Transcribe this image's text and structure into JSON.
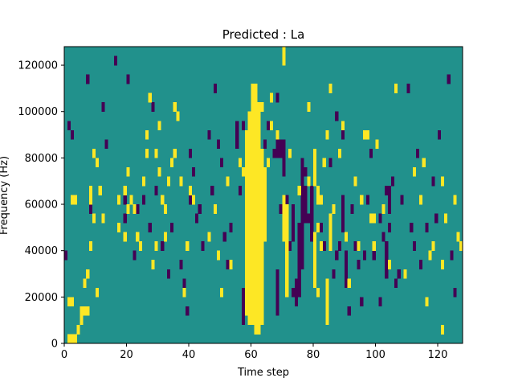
{
  "chart_data": {
    "type": "heatmap",
    "title": "Predicted : La",
    "xlabel": "Time step",
    "ylabel": "Frequency (Hz)",
    "xlim": [
      0,
      128
    ],
    "ylim": [
      0,
      128000
    ],
    "x_ticks": [
      0,
      20,
      40,
      60,
      80,
      100,
      120
    ],
    "y_ticks": [
      0,
      20000,
      40000,
      60000,
      80000,
      100000,
      120000
    ],
    "grid": false,
    "legend": "none",
    "colors": {
      "low": "#440154",
      "mid": "#21918c",
      "high": "#fde725"
    },
    "cell_width_steps": 1,
    "cell_height_hz": 4000,
    "cells": {
      "high": [
        [
          1,
          0
        ],
        [
          1,
          4
        ],
        [
          2,
          0
        ],
        [
          2,
          4
        ],
        [
          3,
          0
        ],
        [
          2,
          15
        ],
        [
          3,
          15
        ],
        [
          10,
          5
        ],
        [
          4,
          1
        ],
        [
          5,
          2
        ],
        [
          5,
          3
        ],
        [
          6,
          3
        ],
        [
          7,
          3
        ],
        [
          6,
          6
        ],
        [
          7,
          7
        ],
        [
          8,
          10
        ],
        [
          8,
          15
        ],
        [
          8,
          16
        ],
        [
          9,
          13
        ],
        [
          9,
          20
        ],
        [
          10,
          19
        ],
        [
          11,
          16
        ],
        [
          12,
          13
        ],
        [
          17,
          12
        ],
        [
          17,
          15
        ],
        [
          19,
          11
        ],
        [
          19,
          16
        ],
        [
          20,
          14
        ],
        [
          20,
          18
        ],
        [
          21,
          15
        ],
        [
          22,
          14
        ],
        [
          23,
          11
        ],
        [
          24,
          10
        ],
        [
          25,
          17
        ],
        [
          26,
          20
        ],
        [
          26,
          22
        ],
        [
          27,
          26
        ],
        [
          28,
          8
        ],
        [
          29,
          10
        ],
        [
          29,
          20
        ],
        [
          30,
          18
        ],
        [
          30,
          23
        ],
        [
          31,
          15
        ],
        [
          32,
          11
        ],
        [
          32,
          14
        ],
        [
          33,
          17
        ],
        [
          34,
          19
        ],
        [
          35,
          20
        ],
        [
          35,
          25
        ],
        [
          36,
          24
        ],
        [
          37,
          17
        ],
        [
          38,
          5
        ],
        [
          39,
          10
        ],
        [
          40,
          16
        ],
        [
          41,
          15
        ],
        [
          46,
          11
        ],
        [
          48,
          14
        ],
        [
          49,
          9
        ],
        [
          50,
          5
        ],
        [
          52,
          17
        ],
        [
          53,
          8
        ],
        [
          56,
          19
        ],
        [
          57,
          18
        ],
        [
          58,
          22
        ],
        [
          59,
          21
        ],
        [
          60,
          24
        ],
        [
          63,
          25
        ],
        [
          65,
          19
        ],
        [
          66,
          23
        ],
        [
          66,
          26
        ],
        [
          68,
          22
        ],
        [
          70,
          30
        ],
        [
          70,
          31
        ],
        [
          72,
          20
        ],
        [
          75,
          16
        ],
        [
          78,
          17
        ],
        [
          78,
          25
        ],
        [
          81,
          5
        ],
        [
          81,
          12
        ],
        [
          82,
          10
        ],
        [
          82,
          15
        ],
        [
          83,
          19
        ],
        [
          84,
          22
        ],
        [
          85,
          27
        ],
        [
          86,
          14
        ],
        [
          88,
          20
        ],
        [
          89,
          23
        ],
        [
          90,
          11
        ],
        [
          91,
          6
        ],
        [
          93,
          17
        ],
        [
          94,
          10
        ],
        [
          95,
          15
        ],
        [
          97,
          22
        ],
        [
          99,
          13
        ],
        [
          100,
          21
        ],
        [
          104,
          8
        ],
        [
          106,
          27
        ],
        [
          109,
          7
        ],
        [
          112,
          18
        ],
        [
          114,
          15
        ],
        [
          115,
          19
        ],
        [
          116,
          4
        ],
        [
          117,
          9
        ],
        [
          118,
          10
        ],
        [
          121,
          1
        ],
        [
          121,
          8
        ],
        [
          121,
          17
        ],
        [
          122,
          13
        ],
        [
          125,
          15
        ],
        [
          126,
          11
        ],
        [
          127,
          10
        ],
        [
          99,
          10
        ],
        [
          98,
          13
        ],
        [
          96,
          22
        ],
        [
          102,
          14
        ]
      ],
      "low": [
        [
          0,
          9
        ],
        [
          2,
          22
        ],
        [
          1,
          23
        ],
        [
          7,
          28
        ],
        [
          8,
          14
        ],
        [
          12,
          25
        ],
        [
          13,
          21
        ],
        [
          16,
          30
        ],
        [
          19,
          13
        ],
        [
          19,
          15
        ],
        [
          20,
          28
        ],
        [
          22,
          9
        ],
        [
          23,
          14
        ],
        [
          25,
          15
        ],
        [
          27,
          12
        ],
        [
          28,
          25
        ],
        [
          29,
          16
        ],
        [
          31,
          10
        ],
        [
          32,
          14
        ],
        [
          33,
          7
        ],
        [
          34,
          12
        ],
        [
          37,
          8
        ],
        [
          38,
          6
        ],
        [
          39,
          3
        ],
        [
          40,
          20
        ],
        [
          40,
          15
        ],
        [
          41,
          18
        ],
        [
          42,
          13
        ],
        [
          43,
          14
        ],
        [
          44,
          10
        ],
        [
          46,
          22
        ],
        [
          47,
          16
        ],
        [
          48,
          27
        ],
        [
          49,
          21
        ],
        [
          50,
          19
        ],
        [
          51,
          11
        ],
        [
          52,
          8
        ],
        [
          52,
          17
        ],
        [
          53,
          12
        ],
        [
          55,
          21
        ],
        [
          56,
          16
        ],
        [
          57,
          23
        ],
        [
          60,
          14
        ],
        [
          61,
          19
        ],
        [
          62,
          17
        ],
        [
          64,
          21
        ],
        [
          65,
          23
        ],
        [
          67,
          20
        ],
        [
          68,
          26
        ],
        [
          69,
          14
        ],
        [
          70,
          18
        ],
        [
          71,
          15
        ],
        [
          72,
          10
        ],
        [
          73,
          5
        ],
        [
          74,
          6
        ],
        [
          75,
          7
        ],
        [
          76,
          12
        ],
        [
          77,
          18
        ],
        [
          78,
          13
        ],
        [
          79,
          16
        ],
        [
          80,
          9
        ],
        [
          81,
          15
        ],
        [
          82,
          12
        ],
        [
          83,
          10
        ],
        [
          84,
          4
        ],
        [
          85,
          19
        ],
        [
          86,
          7
        ],
        [
          87,
          24
        ],
        [
          88,
          10
        ],
        [
          89,
          22
        ],
        [
          90,
          11
        ],
        [
          91,
          3
        ],
        [
          92,
          14
        ],
        [
          93,
          10
        ],
        [
          94,
          8
        ],
        [
          95,
          4
        ],
        [
          96,
          9
        ],
        [
          97,
          15
        ],
        [
          98,
          20
        ],
        [
          99,
          9
        ],
        [
          101,
          13
        ],
        [
          102,
          11
        ],
        [
          103,
          16
        ],
        [
          105,
          17
        ],
        [
          106,
          6
        ],
        [
          107,
          7
        ],
        [
          108,
          15
        ],
        [
          110,
          27
        ],
        [
          111,
          12
        ],
        [
          112,
          10
        ],
        [
          113,
          20
        ],
        [
          114,
          8
        ],
        [
          116,
          12
        ],
        [
          118,
          17
        ],
        [
          119,
          13
        ],
        [
          120,
          22
        ],
        [
          123,
          28
        ],
        [
          124,
          9
        ],
        [
          125,
          5
        ],
        [
          101,
          4
        ],
        [
          104,
          12
        ],
        [
          87,
          9
        ]
      ],
      "high_blocks": [
        {
          "x": 58,
          "y0": 3,
          "y1": 21
        },
        {
          "x": 59,
          "y0": 2,
          "y1": 24
        },
        {
          "x": 60,
          "y0": 2,
          "y1": 27
        },
        {
          "x": 61,
          "y0": 1,
          "y1": 27
        },
        {
          "x": 62,
          "y0": 1,
          "y1": 25
        },
        {
          "x": 63,
          "y0": 2,
          "y1": 20
        },
        {
          "x": 64,
          "y0": 11,
          "y1": 18
        },
        {
          "x": 70,
          "y0": 11,
          "y1": 15
        },
        {
          "x": 71,
          "y0": 5,
          "y1": 14
        },
        {
          "x": 80,
          "y0": 17,
          "y1": 20
        },
        {
          "x": 80,
          "y0": 6,
          "y1": 11
        },
        {
          "x": 81,
          "y0": 15,
          "y1": 16
        },
        {
          "x": 85,
          "y0": 10,
          "y1": 13
        },
        {
          "x": 84,
          "y0": 2,
          "y1": 6
        }
      ],
      "low_blocks": [
        {
          "x": 55,
          "y0": 21,
          "y1": 23
        },
        {
          "x": 57,
          "y0": 2,
          "y1": 5
        },
        {
          "x": 68,
          "y0": 3,
          "y1": 7
        },
        {
          "x": 70,
          "y0": 19,
          "y1": 21
        },
        {
          "x": 73,
          "y0": 11,
          "y1": 14
        },
        {
          "x": 74,
          "y0": 4,
          "y1": 6
        },
        {
          "x": 75,
          "y0": 5,
          "y1": 12
        },
        {
          "x": 76,
          "y0": 8,
          "y1": 19
        },
        {
          "x": 77,
          "y0": 13,
          "y1": 16
        },
        {
          "x": 79,
          "y0": 11,
          "y1": 16
        },
        {
          "x": 89,
          "y0": 12,
          "y1": 15
        },
        {
          "x": 90,
          "y0": 6,
          "y1": 9
        },
        {
          "x": 103,
          "y0": 7,
          "y1": 10
        },
        {
          "x": 104,
          "y0": 14,
          "y1": 16
        },
        {
          "x": 68,
          "y0": 20,
          "y1": 21
        },
        {
          "x": 69,
          "y0": 20,
          "y1": 21
        }
      ]
    }
  }
}
